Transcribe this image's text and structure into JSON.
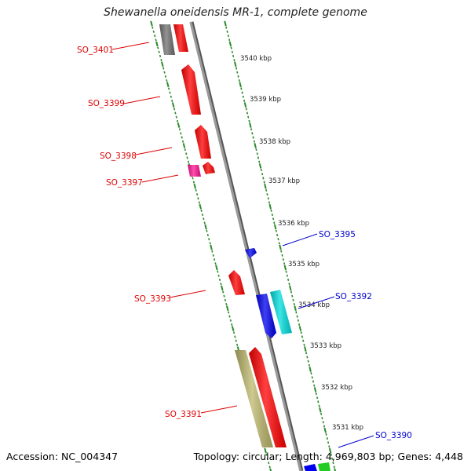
{
  "title": "Shewanella oneidensis MR-1, complete genome",
  "footer": {
    "accession": "Accession: NC_004347",
    "summary": "Topology: circular; Length: 4,969,803 bp; Genes: 4,448"
  },
  "colors": {
    "backbone": "#8a8a8a",
    "ticks": "#2a8a2a",
    "forward_label": "#dd0000",
    "reverse_label": "#0000cc"
  },
  "scale": {
    "ticks": [
      "3540 kbp",
      "3539 kbp",
      "3538 kbp",
      "3537 kbp",
      "3536 kbp",
      "3535 kbp",
      "3534 kbp",
      "3533 kbp",
      "3532 kbp",
      "3531 kbp"
    ]
  },
  "genes": [
    {
      "label": "",
      "color": "#707070",
      "strand": "forward"
    },
    {
      "label": "SO_3401",
      "color": "#ff0000",
      "strand": "forward"
    },
    {
      "label": "SO_3399",
      "color": "#ff0000",
      "strand": "forward"
    },
    {
      "label": "SO_3398",
      "color": "#ff0000",
      "strand": "forward"
    },
    {
      "label": "SO_3397",
      "color": "#ff1493",
      "strand": "forward"
    },
    {
      "label": "",
      "color": "#ff0000",
      "strand": "forward"
    },
    {
      "label": "SO_3395",
      "color": "#0000ee",
      "strand": "reverse"
    },
    {
      "label": "SO_3393",
      "color": "#ff0000",
      "strand": "forward"
    },
    {
      "label": "",
      "color": "#0000ee",
      "strand": "reverse"
    },
    {
      "label": "SO_3392",
      "color": "#00dddd",
      "strand": "reverse"
    },
    {
      "label": "",
      "color": "#bdb76b",
      "strand": "forward"
    },
    {
      "label": "SO_3391",
      "color": "#ff0000",
      "strand": "forward"
    },
    {
      "label": "SO_3390",
      "color": "#0000ee",
      "strand": "reverse"
    },
    {
      "label": "",
      "color": "#22cc22",
      "strand": "reverse"
    }
  ]
}
